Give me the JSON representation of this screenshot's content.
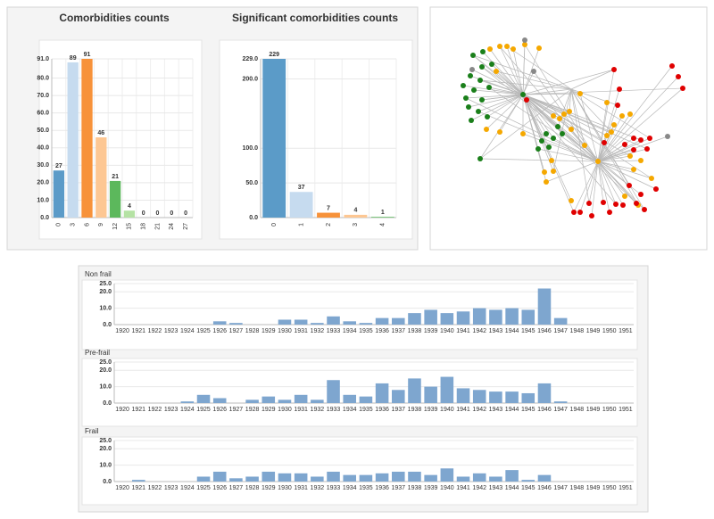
{
  "chart_data": [
    {
      "type": "bar",
      "title": "Comorbidities counts",
      "categories": [
        "0",
        "3",
        "6",
        "9",
        "12",
        "15",
        "18",
        "21",
        "24",
        "27"
      ],
      "values": [
        27,
        89,
        91,
        46,
        21,
        4,
        0,
        0,
        0,
        0
      ],
      "colors": [
        "#5b9bc8",
        "#c6dbef",
        "#f7923a",
        "#fdc793",
        "#5cb85c",
        "#b5e2a4",
        "#d62728",
        "#f4a6a6",
        "#9467bd",
        "#c5b0d5"
      ],
      "ylim": [
        0,
        91
      ],
      "yticks": [
        {
          "value": 0,
          "label": "0.0"
        },
        {
          "value": 10,
          "label": "10.0"
        },
        {
          "value": 20,
          "label": "20.0"
        },
        {
          "value": 30,
          "label": "30.0"
        },
        {
          "value": 40,
          "label": "40.0"
        },
        {
          "value": 50,
          "label": "50.0"
        },
        {
          "value": 60,
          "label": "60.0"
        },
        {
          "value": 70,
          "label": "70.0"
        },
        {
          "value": 80,
          "label": "80.0"
        },
        {
          "value": 91,
          "label": "91.0"
        }
      ],
      "grid": true
    },
    {
      "type": "bar",
      "title": "Significant comorbidities counts",
      "categories": [
        "0",
        "1",
        "2",
        "3",
        "4"
      ],
      "values": [
        229,
        37,
        7,
        4,
        1
      ],
      "colors": [
        "#5b9bc8",
        "#c6dbef",
        "#f7923a",
        "#fdc793",
        "#5cb85c"
      ],
      "ylim": [
        0,
        229
      ],
      "yticks": [
        {
          "value": 0,
          "label": "0.0"
        },
        {
          "value": 50,
          "label": "50.0"
        },
        {
          "value": 100,
          "label": "100.0"
        },
        {
          "value": 200,
          "label": "200.0"
        },
        {
          "value": 229,
          "label": "229.0"
        }
      ],
      "grid": true
    },
    {
      "type": "bar",
      "title": "Non frail",
      "categories": [
        "1920",
        "1921",
        "1922",
        "1923",
        "1924",
        "1925",
        "1926",
        "1927",
        "1928",
        "1929",
        "1930",
        "1931",
        "1932",
        "1933",
        "1934",
        "1935",
        "1936",
        "1937",
        "1938",
        "1939",
        "1940",
        "1941",
        "1942",
        "1943",
        "1944",
        "1945",
        "1946",
        "1947",
        "1948",
        "1949",
        "1950",
        "1951"
      ],
      "values": [
        0,
        0,
        0,
        0,
        0,
        0,
        2,
        1,
        0,
        0,
        3,
        3,
        1,
        5,
        2,
        1,
        4,
        4,
        7,
        9,
        7,
        8,
        10,
        9,
        10,
        9,
        22,
        4,
        0,
        0,
        0,
        0
      ],
      "color": "#7ea6cf",
      "ylim": [
        0,
        25
      ],
      "yticks": [
        {
          "value": 0,
          "label": "0.0"
        },
        {
          "value": 10,
          "label": "10.0"
        },
        {
          "value": 20,
          "label": "20.0"
        },
        {
          "value": 25,
          "label": "25.0"
        }
      ],
      "grid": true
    },
    {
      "type": "bar",
      "title": "Pre-frail",
      "categories": [
        "1920",
        "1921",
        "1922",
        "1923",
        "1924",
        "1925",
        "1926",
        "1927",
        "1928",
        "1929",
        "1930",
        "1931",
        "1932",
        "1933",
        "1934",
        "1935",
        "1936",
        "1937",
        "1938",
        "1939",
        "1940",
        "1941",
        "1942",
        "1943",
        "1944",
        "1945",
        "1946",
        "1947",
        "1948",
        "1949",
        "1950",
        "1951"
      ],
      "values": [
        0,
        0,
        0,
        0,
        1,
        5,
        3,
        0,
        2,
        4,
        2,
        5,
        2,
        14,
        5,
        4,
        12,
        8,
        15,
        10,
        16,
        9,
        8,
        7,
        7,
        6,
        12,
        1,
        0,
        0,
        0,
        0
      ],
      "color": "#7ea6cf",
      "ylim": [
        0,
        25
      ],
      "yticks": [
        {
          "value": 0,
          "label": "0.0"
        },
        {
          "value": 10,
          "label": "10.0"
        },
        {
          "value": 20,
          "label": "20.0"
        },
        {
          "value": 25,
          "label": "25.0"
        }
      ],
      "grid": true
    },
    {
      "type": "bar",
      "title": "Frail",
      "categories": [
        "1920",
        "1921",
        "1922",
        "1923",
        "1924",
        "1925",
        "1926",
        "1927",
        "1928",
        "1929",
        "1930",
        "1931",
        "1932",
        "1933",
        "1934",
        "1935",
        "1936",
        "1937",
        "1938",
        "1939",
        "1940",
        "1941",
        "1942",
        "1943",
        "1944",
        "1945",
        "1946",
        "1947",
        "1948",
        "1949",
        "1950",
        "1951"
      ],
      "values": [
        0,
        1,
        0,
        0,
        0,
        3,
        6,
        2,
        3,
        6,
        5,
        5,
        3,
        6,
        4,
        4,
        5,
        6,
        6,
        4,
        8,
        3,
        5,
        3,
        7,
        1,
        4,
        0,
        0,
        0,
        0,
        0
      ],
      "color": "#7ea6cf",
      "ylim": [
        0,
        25
      ],
      "yticks": [
        {
          "value": 0,
          "label": "0.0"
        },
        {
          "value": 10,
          "label": "10.0"
        },
        {
          "value": 20,
          "label": "20.0"
        },
        {
          "value": 25,
          "label": "25.0"
        }
      ],
      "grid": true
    }
  ]
}
